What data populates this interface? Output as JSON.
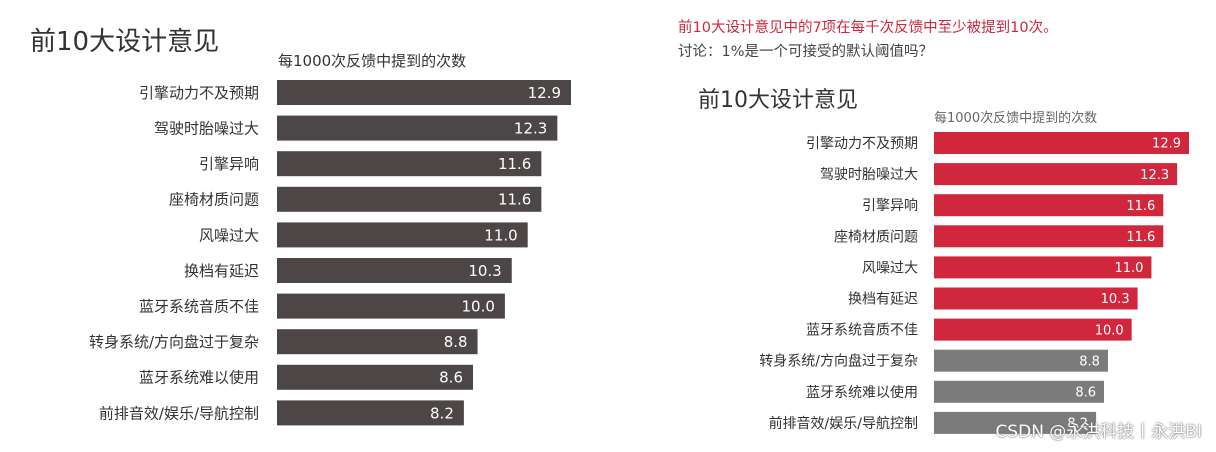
{
  "left_chart": {
    "title": "前10大设计意见",
    "subtitle": "每1000次反馈中提到的次数"
  },
  "right_chart": {
    "headline": "前10大设计意见中的7项在每千次反馈中至少被提到10次。",
    "discussion": "讨论：1%是一个可接受的默认阈值吗？",
    "title": "前10大设计意见",
    "subtitle": "每1000次反馈中提到的次数"
  },
  "watermark": "CSDN @永洪科技丨永洪BI",
  "colors": {
    "left_bar": "#4d4646",
    "highlight_bar": "#d0273d",
    "muted_bar": "#7b7b7b",
    "headline_text": "#d0273d",
    "label_text": "#333333"
  },
  "chart_data": [
    {
      "type": "bar",
      "orientation": "horizontal",
      "title": "前10大设计意见",
      "subtitle": "每1000次反馈中提到的次数",
      "categories": [
        "引擎动力不及预期",
        "驾驶时胎噪过大",
        "引擎异响",
        "座椅材质问题",
        "风噪过大",
        "换档有延迟",
        "蓝牙系统音质不佳",
        "转身系统/方向盘过于复杂",
        "蓝牙系统难以使用",
        "前排音效/娱乐/导航控制"
      ],
      "values": [
        12.9,
        12.3,
        11.6,
        11.6,
        11.0,
        10.3,
        10.0,
        8.8,
        8.6,
        8.2
      ],
      "value_labels": [
        "12.9",
        "12.3",
        "11.6",
        "11.6",
        "11.0",
        "10.3",
        "10.0",
        "8.8",
        "8.6",
        "8.2"
      ],
      "xlim": [
        0,
        12.9
      ],
      "grid": false,
      "data_labels": true
    },
    {
      "type": "bar",
      "orientation": "horizontal",
      "title": "前10大设计意见",
      "subtitle": "每1000次反馈中提到的次数",
      "categories": [
        "引擎动力不及预期",
        "驾驶时胎噪过大",
        "引擎异响",
        "座椅材质问题",
        "风噪过大",
        "换档有延迟",
        "蓝牙系统音质不佳",
        "转身系统/方向盘过于复杂",
        "蓝牙系统难以使用",
        "前排音效/娱乐/导航控制"
      ],
      "values": [
        12.9,
        12.3,
        11.6,
        11.6,
        11.0,
        10.3,
        10.0,
        8.8,
        8.6,
        8.2
      ],
      "value_labels": [
        "12.9",
        "12.3",
        "11.6",
        "11.6",
        "11.0",
        "10.3",
        "10.0",
        "8.8",
        "8.6",
        "8.2"
      ],
      "highlight_threshold": 10,
      "xlim": [
        0,
        12.9
      ],
      "grid": false,
      "data_labels": true
    }
  ]
}
